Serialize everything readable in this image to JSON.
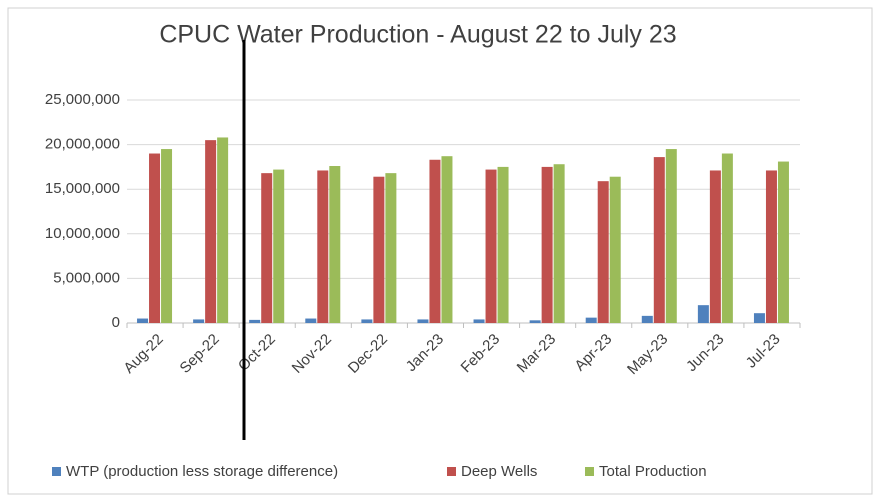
{
  "chart_data": {
    "type": "bar",
    "title": "CPUC Water Production - August 22 to July 23",
    "categories": [
      "Aug-22",
      "Sep-22",
      "Oct-22",
      "Nov-22",
      "Dec-22",
      "Jan-23",
      "Feb-23",
      "Mar-23",
      "Apr-23",
      "May-23",
      "Jun-23",
      "Jul-23"
    ],
    "series": [
      {
        "name": "WTP (production less storage difference)",
        "color": "#4f81bd",
        "values": [
          500000,
          400000,
          350000,
          500000,
          400000,
          400000,
          400000,
          300000,
          600000,
          800000,
          2000000,
          1100000
        ]
      },
      {
        "name": "Deep Wells",
        "color": "#c0504d",
        "values": [
          19000000,
          20500000,
          16800000,
          17100000,
          16400000,
          18300000,
          17200000,
          17500000,
          15900000,
          18600000,
          17100000,
          17100000
        ]
      },
      {
        "name": "Total Production",
        "color": "#9bbb59",
        "values": [
          19500000,
          20800000,
          17200000,
          17600000,
          16800000,
          18700000,
          17500000,
          17800000,
          16400000,
          19500000,
          19000000,
          18100000
        ]
      }
    ],
    "ylim": [
      0,
      25000000
    ],
    "yticks": [
      0,
      {
        "value": 5000000,
        "label": "5,000,000"
      },
      {
        "value": 10000000,
        "label": "10,000,000"
      },
      {
        "value": 15000000,
        "label": "15,000,000"
      },
      {
        "value": 20000000,
        "label": "20,000,000"
      },
      {
        "value": 25000000,
        "label": "25,000,000"
      }
    ],
    "grid": true,
    "legend": "bottom"
  }
}
